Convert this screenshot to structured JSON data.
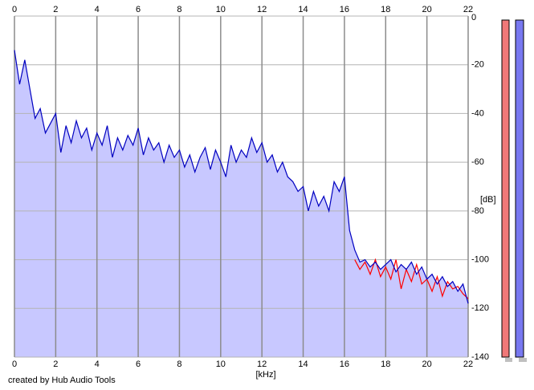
{
  "chart_data": {
    "type": "area",
    "x_label": "[kHz]",
    "y_label": "[dB]",
    "credit": "created by Hub Audio Tools",
    "xlim": [
      0,
      22
    ],
    "xticks": [
      0,
      2,
      4,
      6,
      8,
      10,
      12,
      14,
      16,
      18,
      20,
      22
    ],
    "ylim": [
      -140,
      0
    ],
    "yticks": [
      0,
      -20,
      -40,
      -60,
      -80,
      -100,
      -120,
      -140
    ],
    "grid": true,
    "fill_color": "#c8c8ff",
    "x": [
      0,
      0.25,
      0.5,
      0.75,
      1,
      1.25,
      1.5,
      1.75,
      2,
      2.25,
      2.5,
      2.75,
      3,
      3.25,
      3.5,
      3.75,
      4,
      4.25,
      4.5,
      4.75,
      5,
      5.25,
      5.5,
      5.75,
      6,
      6.25,
      6.5,
      6.75,
      7,
      7.25,
      7.5,
      7.75,
      8,
      8.25,
      8.5,
      8.75,
      9,
      9.25,
      9.5,
      9.75,
      10,
      10.25,
      10.5,
      10.75,
      11,
      11.25,
      11.5,
      11.75,
      12,
      12.25,
      12.5,
      12.75,
      13,
      13.25,
      13.5,
      13.75,
      14,
      14.25,
      14.5,
      14.75,
      15,
      15.25,
      15.5,
      15.75,
      16,
      16.25,
      16.5,
      16.75,
      17,
      17.25,
      17.5,
      17.75,
      18,
      18.25,
      18.5,
      18.75,
      19,
      19.25,
      19.5,
      19.75,
      20,
      20.25,
      20.5,
      20.75,
      21,
      21.25,
      21.5,
      21.75,
      22
    ],
    "series": [
      {
        "color": "#ff0000",
        "values": [
          null,
          null,
          null,
          null,
          null,
          null,
          null,
          null,
          null,
          null,
          null,
          null,
          null,
          null,
          null,
          null,
          null,
          null,
          null,
          null,
          null,
          null,
          null,
          null,
          null,
          null,
          null,
          null,
          null,
          null,
          null,
          null,
          null,
          null,
          null,
          null,
          null,
          null,
          null,
          null,
          null,
          null,
          null,
          null,
          null,
          null,
          null,
          null,
          null,
          null,
          null,
          null,
          null,
          null,
          null,
          null,
          null,
          null,
          null,
          null,
          null,
          null,
          null,
          null,
          null,
          null,
          -100,
          -104,
          -101,
          -106,
          -100,
          -107,
          -103,
          -108,
          -100,
          -112,
          -104,
          -109,
          -102,
          -110,
          -108,
          -113,
          -107,
          -115,
          -109,
          -112,
          -111,
          -114,
          -116
        ]
      },
      {
        "color": "#0000c0",
        "values": [
          -14,
          -28,
          -18,
          -30,
          -42,
          -38,
          -48,
          -44,
          -40,
          -56,
          -45,
          -52,
          -43,
          -50,
          -46,
          -55,
          -48,
          -53,
          -45,
          -58,
          -50,
          -55,
          -49,
          -53,
          -46,
          -57,
          -50,
          -55,
          -52,
          -60,
          -53,
          -58,
          -55,
          -62,
          -57,
          -64,
          -58,
          -54,
          -63,
          -55,
          -60,
          -66,
          -53,
          -60,
          -55,
          -58,
          -50,
          -56,
          -52,
          -60,
          -57,
          -64,
          -60,
          -66,
          -68,
          -72,
          -70,
          -80,
          -72,
          -78,
          -74,
          -80,
          -68,
          -72,
          -66,
          -88,
          -96,
          -101,
          -100,
          -103,
          -101,
          -104,
          -102,
          -100,
          -105,
          -102,
          -104,
          -101,
          -106,
          -103,
          -108,
          -106,
          -110,
          -107,
          -111,
          -109,
          -113,
          -110,
          -118
        ]
      }
    ]
  }
}
